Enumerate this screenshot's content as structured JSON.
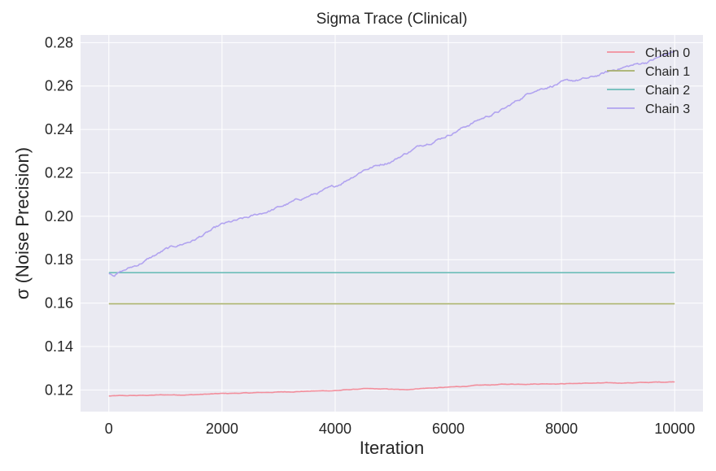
{
  "chart_data": {
    "type": "line",
    "title": "Sigma Trace (Clinical)",
    "xlabel": "Iteration",
    "ylabel": "σ (Noise Precision)",
    "xlim": [
      -500,
      10500
    ],
    "ylim": [
      0.11,
      0.2835
    ],
    "xticks": [
      0,
      2000,
      4000,
      6000,
      8000,
      10000
    ],
    "yticks": [
      0.12,
      0.14,
      0.16,
      0.18,
      0.2,
      0.22,
      0.24,
      0.26,
      0.28
    ],
    "grid": true,
    "legend_position": "top-right",
    "series": [
      {
        "name": "Chain 0",
        "color": "#f28e9c",
        "x": [
          0,
          500,
          1000,
          1500,
          2000,
          2500,
          3000,
          3500,
          4000,
          4500,
          5000,
          5200,
          5500,
          6000,
          6500,
          7000,
          7500,
          8000,
          8500,
          9000,
          9500,
          10000
        ],
        "y": [
          0.1172,
          0.1174,
          0.1177,
          0.1178,
          0.1183,
          0.1186,
          0.119,
          0.1194,
          0.1197,
          0.1205,
          0.1203,
          0.12,
          0.1207,
          0.1212,
          0.122,
          0.1226,
          0.1228,
          0.1229,
          0.1231,
          0.1232,
          0.1234,
          0.1238
        ]
      },
      {
        "name": "Chain 1",
        "color": "#a8b06b",
        "x": [
          0,
          10000
        ],
        "y": [
          0.1597,
          0.1597
        ]
      },
      {
        "name": "Chain 2",
        "color": "#6cbdb8",
        "x": [
          0,
          10000
        ],
        "y": [
          0.174,
          0.174
        ]
      },
      {
        "name": "Chain 3",
        "color": "#b1a3f0",
        "x": [
          0,
          100,
          500,
          1000,
          1500,
          2000,
          2500,
          3000,
          3500,
          4000,
          4500,
          5000,
          5500,
          6000,
          6500,
          7000,
          7500,
          8000,
          8500,
          9000,
          9500,
          10000
        ],
        "y": [
          0.174,
          0.1733,
          0.1775,
          0.1845,
          0.189,
          0.196,
          0.1995,
          0.204,
          0.209,
          0.2135,
          0.2215,
          0.2255,
          0.2325,
          0.2375,
          0.244,
          0.2495,
          0.258,
          0.2615,
          0.2635,
          0.268,
          0.271,
          0.276
        ]
      }
    ]
  }
}
